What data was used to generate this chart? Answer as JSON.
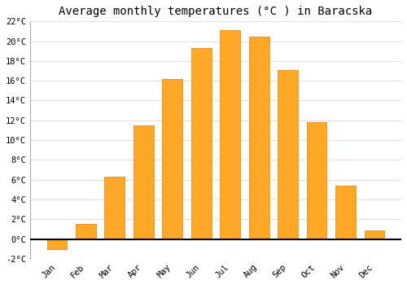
{
  "title": "Average monthly temperatures (°C ) in Baracska",
  "months": [
    "Jan",
    "Feb",
    "Mar",
    "Apr",
    "May",
    "Jun",
    "Jul",
    "Aug",
    "Sep",
    "Oct",
    "Nov",
    "Dec"
  ],
  "values": [
    -1.0,
    1.5,
    6.3,
    11.5,
    16.2,
    19.3,
    21.1,
    20.5,
    17.1,
    11.8,
    5.4,
    0.9
  ],
  "bar_color": "#FFA726",
  "bar_edge_color": "#E69020",
  "ylim": [
    -2,
    22
  ],
  "yticks": [
    -2,
    0,
    2,
    4,
    6,
    8,
    10,
    12,
    14,
    16,
    18,
    20,
    22
  ],
  "ytick_labels": [
    "-2°C",
    "0°C",
    "2°C",
    "4°C",
    "6°C",
    "8°C",
    "10°C",
    "12°C",
    "14°C",
    "16°C",
    "18°C",
    "20°C",
    "22°C"
  ],
  "background_color": "#ffffff",
  "plot_bg_color": "#ffffff",
  "grid_color": "#e0e0e0",
  "title_fontsize": 10,
  "tick_fontsize": 7.5,
  "zero_line_color": "#000000",
  "bar_width": 0.7,
  "figsize": [
    5.0,
    3.5
  ],
  "dpi": 100
}
